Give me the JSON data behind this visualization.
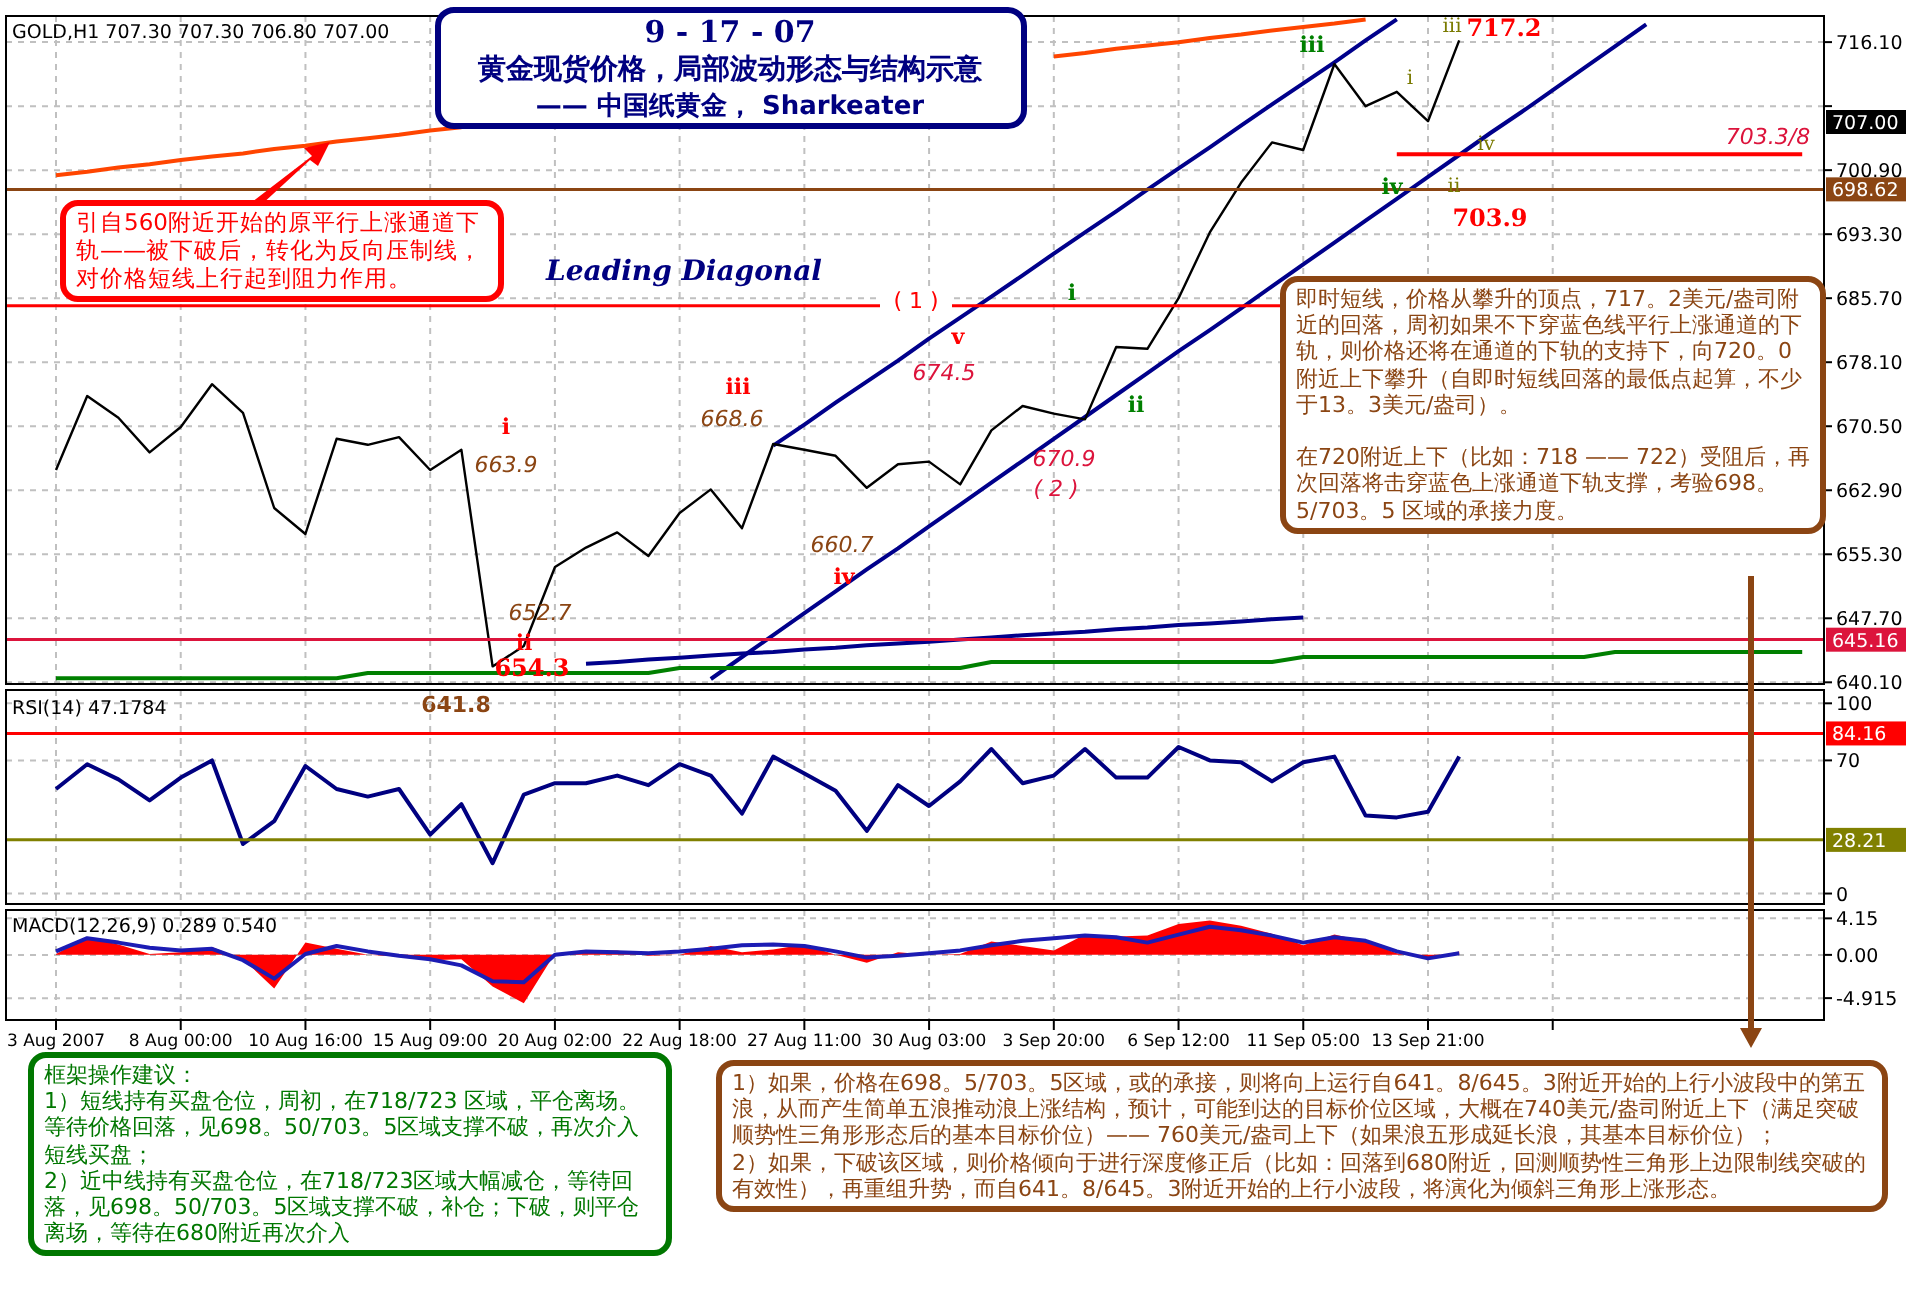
{
  "chart_data": [
    {
      "type": "line",
      "title": "9 - 17 - 07",
      "subtitle": "黄金现货价格，局部波动形态与结构示意",
      "categories": [
        null,
        null,
        null,
        null,
        null,
        null,
        null,
        null,
        null,
        null,
        null,
        null,
        null,
        null,
        null,
        null,
        null,
        null,
        null,
        null,
        null,
        null,
        null,
        null,
        null,
        null,
        null,
        null,
        null,
        null,
        null,
        null,
        null,
        null,
        null,
        null,
        null,
        null,
        null,
        null,
        null,
        null,
        null,
        null,
        null,
        null,
        null,
        null,
        null,
        null,
        null,
        null,
        null,
        null,
        null,
        null,
        null
      ],
      "ylim": [
        639.9,
        719.2
      ],
      "yticks": [
        {
          "value": 716.1,
          "label": "716.10"
        },
        {
          "value": 708.5,
          "label": null
        },
        {
          "value": 700.9,
          "label": "700.90"
        },
        {
          "value": 693.3,
          "label": "693.30"
        },
        {
          "value": 685.7,
          "label": "685.70"
        },
        {
          "value": 678.1,
          "label": "678.10"
        },
        {
          "value": 670.5,
          "label": "670.50"
        },
        {
          "value": 662.9,
          "label": "662.90"
        },
        {
          "value": 655.3,
          "label": "655.30"
        },
        {
          "value": 647.7,
          "label": "647.70"
        },
        {
          "value": 640.1,
          "label": "640.10"
        }
      ],
      "grid": true,
      "tick_labels": "y",
      "ref_lines": [
        {
          "axis": "y",
          "value": 684.8,
          "color": "#ff0000"
        },
        {
          "axis": "y",
          "value": 698.62,
          "label": "698.62",
          "color": "#8b4513"
        },
        {
          "axis": "y",
          "value": 645.16,
          "label": "645.16",
          "color": "#dc143c"
        }
      ],
      "series": [
        {
          "color": "#000000",
          "values": [
            665.3,
            674.1,
            671.5,
            667.4,
            670.4,
            675.5,
            672.1,
            660.8,
            657.7,
            669.0,
            668.3,
            669.2,
            665.3,
            667.7,
            642.0,
            644.4,
            653.8,
            656.1,
            657.9,
            655.1,
            660.2,
            663.0,
            658.4,
            668.4,
            667.7,
            667.0,
            663.2,
            666.0,
            666.3,
            663.6,
            670.0,
            672.9,
            672.0,
            671.3,
            679.9,
            679.7,
            685.7,
            693.5,
            699.4,
            704.2,
            703.3,
            713.5,
            708.5,
            710.2,
            706.7,
            716.3,
            null,
            null,
            null,
            null,
            null,
            null,
            null,
            null,
            null,
            null,
            null
          ]
        },
        {
          "color": "#00008b",
          "values": [
            null,
            null,
            null,
            null,
            null,
            null,
            null,
            null,
            null,
            null,
            null,
            null,
            null,
            null,
            null,
            null,
            null,
            null,
            null,
            null,
            null,
            null,
            null,
            668.2,
            670.7,
            673.3,
            675.8,
            678.3,
            680.9,
            683.4,
            685.9,
            688.4,
            691.0,
            693.5,
            696.0,
            698.6,
            701.1,
            703.6,
            706.2,
            708.7,
            711.2,
            713.7,
            716.3,
            718.8,
            null,
            null,
            null,
            null,
            null,
            null,
            null,
            null,
            null,
            null,
            null,
            null,
            null
          ]
        },
        {
          "color": "#00008b",
          "values": [
            null,
            null,
            null,
            null,
            null,
            null,
            null,
            null,
            null,
            null,
            null,
            null,
            null,
            null,
            null,
            null,
            null,
            null,
            null,
            null,
            null,
            640.5,
            643.1,
            645.7,
            648.3,
            650.9,
            653.5,
            656.0,
            658.6,
            661.2,
            663.8,
            666.4,
            669.0,
            671.6,
            674.2,
            676.8,
            679.4,
            681.9,
            684.5,
            687.1,
            689.7,
            692.3,
            694.9,
            697.5,
            700.1,
            702.7,
            705.3,
            707.8,
            710.4,
            713.0,
            715.6,
            718.2,
            null,
            null,
            null,
            null,
            null
          ]
        },
        {
          "color": "#ff4500",
          "values": [
            700.3,
            700.7,
            701.2,
            701.6,
            702.1,
            702.5,
            702.9,
            703.4,
            703.8,
            704.3,
            704.7,
            705.1,
            705.6,
            706.0,
            null,
            null,
            null,
            null,
            null,
            null,
            null,
            null,
            null,
            null,
            null,
            null,
            null,
            null,
            null,
            null,
            null,
            null,
            714.4,
            714.8,
            715.3,
            715.7,
            716.1,
            716.6,
            717.0,
            717.5,
            717.9,
            718.3,
            718.8,
            null,
            null,
            null,
            null,
            null,
            null,
            null,
            null,
            null,
            null,
            null,
            null,
            null,
            null
          ]
        },
        {
          "color": "#008000",
          "values": [
            640.6,
            640.6,
            640.6,
            640.6,
            640.6,
            640.6,
            640.6,
            640.6,
            640.6,
            640.6,
            641.2,
            641.2,
            641.2,
            641.2,
            641.2,
            641.2,
            641.2,
            641.2,
            641.2,
            641.2,
            641.8,
            641.8,
            641.8,
            641.8,
            641.8,
            641.8,
            641.8,
            641.8,
            641.8,
            641.8,
            642.5,
            642.5,
            642.5,
            642.5,
            642.5,
            642.5,
            642.5,
            642.5,
            642.5,
            642.5,
            643.1,
            643.1,
            643.1,
            643.1,
            643.1,
            643.1,
            643.1,
            643.1,
            643.1,
            643.1,
            643.7,
            643.7,
            643.7,
            643.7,
            643.7,
            643.7,
            643.7
          ]
        },
        {
          "color": "#00008b",
          "values": [
            null,
            null,
            null,
            null,
            null,
            null,
            null,
            null,
            null,
            null,
            null,
            null,
            null,
            null,
            null,
            null,
            null,
            642.3,
            642.5,
            642.8,
            643.0,
            643.3,
            643.5,
            643.7,
            644.0,
            644.2,
            644.5,
            644.7,
            644.9,
            645.2,
            645.4,
            645.7,
            645.9,
            646.1,
            646.4,
            646.6,
            646.9,
            647.1,
            647.3,
            647.6,
            647.8,
            null,
            null,
            null,
            null,
            null,
            null,
            null,
            null,
            null,
            null,
            null,
            null,
            null,
            null,
            null,
            null
          ]
        },
        {
          "color": "#ff0000",
          "values": [
            null,
            null,
            null,
            null,
            null,
            null,
            null,
            null,
            null,
            null,
            null,
            null,
            null,
            null,
            null,
            null,
            null,
            null,
            null,
            null,
            null,
            null,
            null,
            null,
            null,
            null,
            null,
            null,
            null,
            null,
            null,
            null,
            null,
            null,
            null,
            null,
            null,
            null,
            null,
            null,
            null,
            null,
            null,
            702.8,
            702.8,
            702.8,
            702.8,
            702.8,
            702.8,
            702.8,
            702.8,
            702.8,
            702.8,
            702.8,
            702.8,
            702.8,
            702.8
          ]
        }
      ],
      "annotations": [
        "GOLD,H1  707.30 707.30 706.80 707.00",
        "—— 中国纸黄金，  Sharkeater",
        "引自560附近开始的原平行上涨通道下轨——被下破后，转化为反向压制线，对价格短线上行起到阻力作用。",
        "即时短线，价格从攀升的顶点，717。2美元/盎司附近的回落，周初如果不下穿蓝色线平行上涨通道的下轨，则价格还将在通道的下轨的支持下，向720。0附近上下攀升（自即时短线回落的最低点起算，不少于13。3美元/盎司）。",
        "在720附近上下（比如：718 —— 722）受阻后，再次回落将击穿蓝色上涨通道下轨支撑，考验698。5/703。5 区域的承接力度。",
        "框架操作建议：",
        "1）短线持有买盘仓位，周初，在718/723 区域，平仓离场。等待价格回落，见698。50/703。5区域支撑不破，再次介入短线买盘；",
        "2）近中线持有买盘仓位，在718/723区域大幅减仓，等待回落，见698。50/703。5区域支撑不破，补仓；下破，则平仓离场，等待在680附近再次介入",
        "1）如果，价格在698。5/703。5区域，或的承接，则将向上运行自641。8/645。3附近开始的上行小波段中的第五浪，从而产生简单五浪推动浪上涨结构，预计，可能到达的目标价位区域，大概在740美元/盎司附近上下（满足突破顺势性三角形形态后的基本目标价位）—— 760美元/盎司上下（如果浪五形成延长浪，其基本目标价位）；",
        "2）如果，下破该区域，则价格倾向于进行深度修正后（比如：回落到680附近，回测顺势性三角形上边限制线突破的有效性），再重组升势，而自641。8/645。3附近开始的上行小波段，将演化为倾斜三角形上涨形态。",
        "Leading  Diagonal",
        "i",
        "663.9",
        "652.7",
        "ii",
        "654.3",
        "641.8",
        "iii",
        "668.6",
        "660.7",
        "iv",
        "( 1 )",
        "v",
        "674.5",
        "i",
        "ii",
        "670.9",
        "( 2 )",
        "iii",
        "iv",
        "iii",
        "717.2",
        "i",
        "iv",
        "ii",
        "703.9",
        "703.3/8",
        "707.00"
      ]
    },
    {
      "type": "line",
      "categories": [
        null,
        null,
        null,
        null,
        null,
        null,
        null,
        null,
        null,
        null,
        null,
        null,
        null,
        null,
        null,
        null,
        null,
        null,
        null,
        null,
        null,
        null,
        null,
        null,
        null,
        null,
        null,
        null,
        null,
        null,
        null,
        null,
        null,
        null,
        null,
        null,
        null,
        null,
        null,
        null,
        null,
        null,
        null,
        null,
        null,
        null,
        null,
        null,
        null,
        null,
        null,
        null,
        null,
        null,
        null,
        null,
        null
      ],
      "ylim": [
        -5.5,
        107
      ],
      "yticks": [
        100,
        70,
        0
      ],
      "grid": true,
      "tick_labels": "y",
      "ref_lines": [
        {
          "axis": "y",
          "value": 84.16,
          "label": "84.16",
          "color": "#ff0000"
        },
        {
          "axis": "y",
          "value": 28.21,
          "label": "28.21",
          "color": "#808000"
        }
      ],
      "series": [
        {
          "color": "#000080",
          "values": [
            55,
            68,
            60,
            49,
            61,
            70,
            26,
            38,
            67,
            55,
            51,
            55,
            31,
            47,
            16,
            52,
            58,
            58,
            62,
            57,
            68,
            62,
            42,
            72,
            63,
            54,
            33,
            57,
            46,
            59,
            76,
            58,
            62,
            76,
            61,
            61,
            77,
            70,
            69,
            59,
            69,
            72,
            41,
            40,
            43,
            72,
            null,
            null,
            null,
            null,
            null,
            null,
            null,
            null,
            null,
            null,
            null
          ]
        }
      ],
      "annotations": [
        "RSI(14) 47.1784"
      ]
    },
    {
      "type": "line",
      "categories": [
        "3 Aug 2007",
        null,
        null,
        null,
        "8 Aug 00:00",
        null,
        null,
        null,
        "10 Aug 16:00",
        null,
        null,
        null,
        "15 Aug 09:00",
        null,
        null,
        null,
        "20 Aug 02:00",
        null,
        null,
        null,
        "22 Aug 18:00",
        null,
        null,
        null,
        "27 Aug 11:00",
        null,
        null,
        null,
        "30 Aug 03:00",
        null,
        null,
        null,
        "3 Sep 20:00",
        null,
        null,
        null,
        "6 Sep 12:00",
        null,
        null,
        null,
        "11 Sep 05:00",
        null,
        null,
        null,
        "13 Sep 21:00",
        null,
        null,
        null,
        null,
        null,
        null,
        null,
        null,
        null,
        null,
        null,
        null
      ],
      "ylim": [
        -7.4,
        5.1
      ],
      "yticks": [
        4.15,
        {
          "value": 0,
          "label": "0.00"
        },
        -4.915
      ],
      "grid": true,
      "series": [
        {
          "type": "area",
          "color": "#ff0000",
          "values": [
            0.1,
            2.0,
            1.2,
            0.1,
            0.3,
            0.9,
            -0.5,
            -3.8,
            1.4,
            0.7,
            0.0,
            -0.2,
            -0.6,
            -0.5,
            -3.6,
            -5.5,
            0.2,
            0.4,
            0.5,
            -0.1,
            0.0,
            1.0,
            0.3,
            0.6,
            1.2,
            0.0,
            -0.9,
            0.3,
            0.0,
            0.1,
            1.5,
            1.0,
            0.5,
            2.3,
            2.1,
            2.2,
            3.5,
            3.9,
            3.3,
            2.4,
            1.1,
            2.3,
            1.5,
            0.2,
            -0.4,
            0.4,
            null,
            null,
            null,
            null,
            null,
            null,
            null,
            null,
            null,
            null,
            null
          ]
        },
        {
          "color": "#1c1cb4",
          "values": [
            0.4,
            1.9,
            1.4,
            0.8,
            0.5,
            0.7,
            -0.6,
            -2.7,
            0.1,
            1.0,
            0.4,
            -0.1,
            -0.5,
            -1.2,
            -3.0,
            -3.1,
            0.0,
            0.4,
            0.3,
            0.2,
            0.4,
            0.7,
            1.1,
            1.2,
            1.0,
            0.4,
            -0.3,
            -0.1,
            0.2,
            0.5,
            1.1,
            1.6,
            1.9,
            2.2,
            2.0,
            1.4,
            2.3,
            3.2,
            2.8,
            2.2,
            1.4,
            2.0,
            1.6,
            0.4,
            -0.4,
            0.2,
            null,
            null,
            null,
            null,
            null,
            null,
            null,
            null,
            null,
            null,
            null
          ]
        }
      ],
      "annotations": [
        "MACD(12,26,9) 0.289 0.540"
      ]
    }
  ]
}
